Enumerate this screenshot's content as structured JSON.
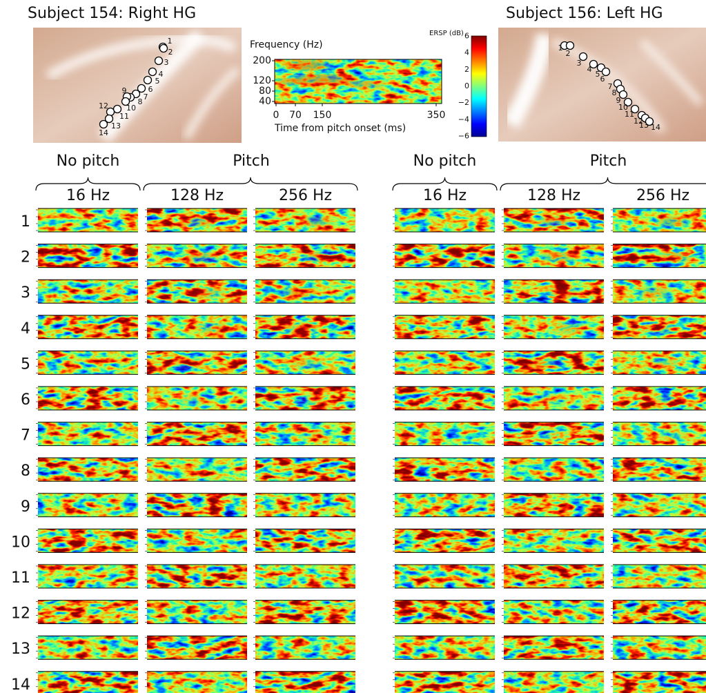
{
  "subjects": [
    {
      "title": "Subject 154: Right HG",
      "electrodes": [
        "1",
        "2",
        "3",
        "4",
        "5",
        "6",
        "7",
        "8",
        "9",
        "10",
        "11",
        "12",
        "13",
        "14"
      ]
    },
    {
      "title": "Subject 156: Left HG",
      "electrodes": [
        "1",
        "2",
        "3",
        "4",
        "5",
        "6",
        "7",
        "8",
        "9",
        "10",
        "11",
        "12",
        "13",
        "14"
      ]
    }
  ],
  "example": {
    "y_label": "Frequency (Hz)",
    "yticks": [
      "200",
      "120",
      "80",
      "40"
    ],
    "xticks": [
      "0",
      "70",
      "150",
      "350"
    ],
    "x_label": "Time from pitch onset (ms)"
  },
  "colorbar": {
    "label": "ERSP (dB)",
    "ticks": [
      "6",
      "4",
      "2",
      "0",
      "−2",
      "−4",
      "−6"
    ]
  },
  "groups": [
    "No pitch",
    "Pitch"
  ],
  "conditions": [
    "16 Hz",
    "128 Hz",
    "256 Hz"
  ],
  "rows": [
    "1",
    "2",
    "3",
    "4",
    "5",
    "6",
    "7",
    "8",
    "9",
    "10",
    "11",
    "12",
    "13",
    "14"
  ]
}
